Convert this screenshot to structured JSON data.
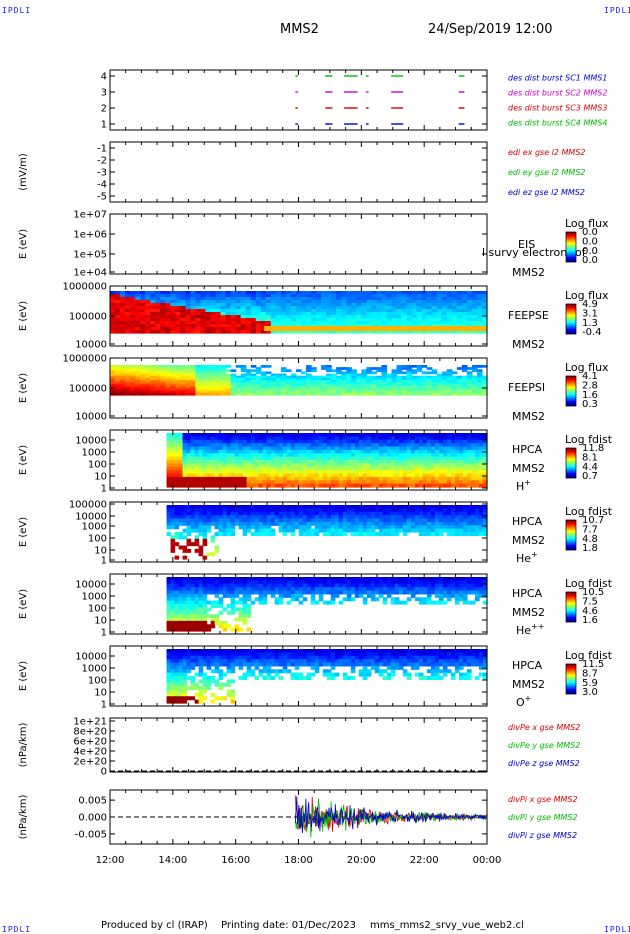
{
  "header": {
    "corner_label": "IPDLI",
    "title": "MMS2",
    "date": "24/Sep/2019 12:00"
  },
  "footer": {
    "producer": "Produced by cl (IRAP)",
    "printing": "Printing date: 01/Dec/2023",
    "script": "mms_mms2_srvy_vue_web2.cl"
  },
  "chart_data": {
    "type": "stacked time-series panels",
    "x_ticks": [
      "12:00",
      "14:00",
      "16:00",
      "18:00",
      "20:00",
      "22:00",
      "00:00"
    ],
    "panels": [
      {
        "id": "burst",
        "ylabel": "",
        "yticks": [
          "4",
          "3",
          "2",
          "1"
        ],
        "legend": [
          {
            "text": "des dist burst SC1 MMS1",
            "color": "#0000cc"
          },
          {
            "text": "des dist burst SC2 MMS2",
            "color": "#cc00cc"
          },
          {
            "text": "des dist burst SC3 MMS3",
            "color": "#dd0000"
          },
          {
            "text": "des dist burst SC4 MMS4",
            "color": "#00bb00"
          }
        ],
        "intervals_hours": [
          [
            17.9,
            17.95
          ],
          [
            18.85,
            19.05
          ],
          [
            19.45,
            19.85
          ],
          [
            20.15,
            20.2
          ],
          [
            20.95,
            21.3
          ],
          [
            23.1,
            23.25
          ]
        ]
      },
      {
        "id": "edi",
        "ylabel": "(mV/m)",
        "yticks": [
          "-1",
          "-2",
          "-3",
          "-4",
          "-5"
        ],
        "legend": [
          {
            "text": "edi ex gse l2 MMS2",
            "color": "#dd0000"
          },
          {
            "text": "edi ey gse l2 MMS2",
            "color": "#00bb00"
          },
          {
            "text": "edi ez gse l2 MMS2",
            "color": "#0000cc"
          }
        ]
      },
      {
        "id": "eis",
        "ylabel": "E (eV)",
        "yticks": [
          "1e+07",
          "1e+06",
          "1e+05",
          "1e+04"
        ],
        "instrument": "EIS",
        "species": "l survy electron tof",
        "spacecraft": "MMS2",
        "cb_title": "Log flux",
        "cb_ticks": [
          "0.0",
          "0.0",
          "0.0",
          "0.0"
        ]
      },
      {
        "id": "feepse",
        "ylabel": "E (eV)",
        "yticks": [
          "1000000",
          "100000",
          "10000"
        ],
        "instrument": "FEEPSE",
        "spacecraft": "MMS2",
        "cb_title": "Log flux",
        "cb_ticks": [
          "4.9",
          "3.1",
          "1.3",
          "-0.4"
        ]
      },
      {
        "id": "feepsi",
        "ylabel": "E (eV)",
        "yticks": [
          "1000000",
          "100000",
          "10000"
        ],
        "instrument": "FEEPSI",
        "spacecraft": "MMS2",
        "cb_title": "Log flux",
        "cb_ticks": [
          "4.1",
          "2.8",
          "1.6",
          "0.3"
        ]
      },
      {
        "id": "hpca_h",
        "ylabel": "E (eV)",
        "yticks": [
          "10000",
          "1000",
          "100",
          "10",
          "1"
        ],
        "instrument": "HPCA",
        "spacecraft": "MMS2",
        "ion": "H",
        "charge": "+",
        "cb_title": "Log fdist",
        "cb_ticks": [
          "11.8",
          "8.1",
          "4.4",
          "0.7"
        ]
      },
      {
        "id": "hpca_he",
        "ylabel": "E (eV)",
        "yticks": [
          "100000",
          "10000",
          "1000",
          "100",
          "10",
          "1"
        ],
        "instrument": "HPCA",
        "spacecraft": "MMS2",
        "ion": "He",
        "charge": "+",
        "cb_title": "Log fdist",
        "cb_ticks": [
          "10.7",
          "7.7",
          "4.8",
          "1.8"
        ]
      },
      {
        "id": "hpca_hepp",
        "ylabel": "E (eV)",
        "yticks": [
          "10000",
          "1000",
          "100",
          "10",
          "1"
        ],
        "instrument": "HPCA",
        "spacecraft": "MMS2",
        "ion": "He",
        "charge": "++",
        "cb_title": "Log fdist",
        "cb_ticks": [
          "10.5",
          "7.5",
          "4.6",
          "1.6"
        ]
      },
      {
        "id": "hpca_o",
        "ylabel": "E (eV)",
        "yticks": [
          "10000",
          "1000",
          "100",
          "10",
          "1"
        ],
        "instrument": "HPCA",
        "spacecraft": "MMS2",
        "ion": "O",
        "charge": "+",
        "cb_title": "Log fdist",
        "cb_ticks": [
          "11.5",
          "8.7",
          "5.9",
          "3.0"
        ]
      },
      {
        "id": "divpe",
        "ylabel": "(nPa/km)",
        "yticks": [
          "1e+21",
          "8e+20",
          "6e+20",
          "4e+20",
          "2e+20",
          "0"
        ],
        "legend": [
          {
            "text": "divPe x gse MMS2",
            "color": "#dd0000"
          },
          {
            "text": "divPe y gse MMS2",
            "color": "#00bb00"
          },
          {
            "text": "divPe z gse MMS2",
            "color": "#0000cc"
          }
        ]
      },
      {
        "id": "divpi",
        "ylabel": "(nPa/km)",
        "yticks": [
          "0.005",
          "0.000",
          "-0.005"
        ],
        "legend": [
          {
            "text": "divPi x gse MMS2",
            "color": "#dd0000"
          },
          {
            "text": "divPi y gse MMS2",
            "color": "#00bb00"
          },
          {
            "text": "divPi z gse MMS2",
            "color": "#0000cc"
          }
        ],
        "ylim": [
          -0.008,
          0.008
        ],
        "active_from_hours": 17.9
      }
    ]
  }
}
